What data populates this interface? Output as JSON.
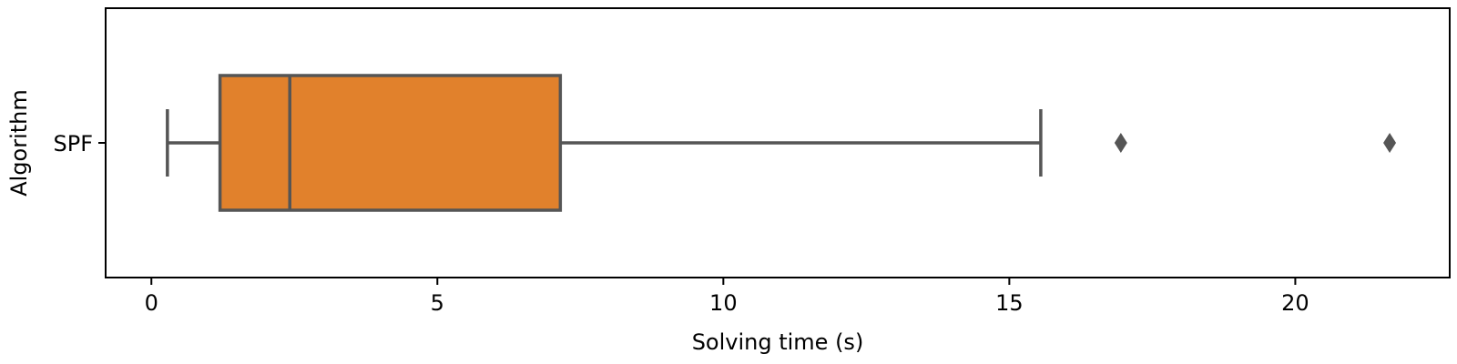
{
  "chart_data": {
    "type": "box",
    "orientation": "horizontal",
    "xlabel": "Solving time (s)",
    "ylabel": "Algorithm",
    "xlim": [
      -0.8,
      22.7
    ],
    "xticks": [
      0,
      5,
      10,
      15,
      20
    ],
    "xtick_labels": [
      "0",
      "5",
      "10",
      "15",
      "20"
    ],
    "grid": false,
    "categories": [
      "SPF"
    ],
    "boxes": [
      {
        "category": "SPF",
        "whisker_low": 0.28,
        "q1": 1.2,
        "median": 2.42,
        "q3": 7.15,
        "whisker_high": 15.55,
        "outliers": [
          16.95,
          21.65
        ],
        "color": "#e1812c"
      }
    ],
    "line_color": "#555555"
  }
}
